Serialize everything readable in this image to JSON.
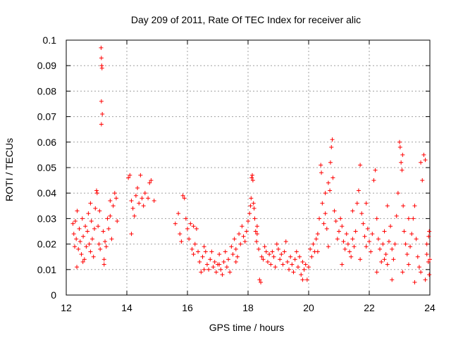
{
  "chart_data": {
    "type": "scatter",
    "title": "Day 209 of 2011, Rate Of TEC Index for receiver alic",
    "xlabel": "GPS time / hours",
    "ylabel": "ROTI / TECUs",
    "xlim": [
      12,
      24
    ],
    "ylim": [
      0,
      0.1
    ],
    "xticks": [
      12,
      14,
      16,
      18,
      20,
      22,
      24
    ],
    "xtick_labels": [
      "12",
      "14",
      "16",
      "18",
      "20",
      "22",
      "24"
    ],
    "yticks": [
      0,
      0.01,
      0.02,
      0.03,
      0.04,
      0.05,
      0.06,
      0.07,
      0.08,
      0.09,
      0.1
    ],
    "ytick_labels": [
      "0",
      "0.01",
      "0.02",
      "0.03",
      "0.04",
      "0.05",
      "0.06",
      "0.07",
      "0.08",
      "0.09",
      "0.1"
    ],
    "grid": true,
    "marker": "+",
    "series": [
      {
        "name": "ROTI",
        "color": "#ff0000",
        "points": [
          [
            12.22,
            0.028
          ],
          [
            12.25,
            0.024
          ],
          [
            12.28,
            0.019
          ],
          [
            12.3,
            0.029
          ],
          [
            12.33,
            0.022
          ],
          [
            12.36,
            0.033
          ],
          [
            12.4,
            0.018
          ],
          [
            12.43,
            0.026
          ],
          [
            12.46,
            0.021
          ],
          [
            12.5,
            0.016
          ],
          [
            12.53,
            0.03
          ],
          [
            12.56,
            0.023
          ],
          [
            12.6,
            0.014
          ],
          [
            12.63,
            0.027
          ],
          [
            12.66,
            0.019
          ],
          [
            12.7,
            0.025
          ],
          [
            12.73,
            0.032
          ],
          [
            12.76,
            0.02
          ],
          [
            12.8,
            0.017
          ],
          [
            12.83,
            0.029
          ],
          [
            12.86,
            0.022
          ],
          [
            12.9,
            0.015
          ],
          [
            12.93,
            0.026
          ],
          [
            12.96,
            0.034
          ],
          [
            13.0,
            0.041
          ],
          [
            13.02,
            0.04
          ],
          [
            13.05,
            0.027
          ],
          [
            13.08,
            0.02
          ],
          [
            13.1,
            0.033
          ],
          [
            13.12,
            0.018
          ],
          [
            13.15,
            0.097
          ],
          [
            13.16,
            0.093
          ],
          [
            13.17,
            0.09
          ],
          [
            13.18,
            0.089
          ],
          [
            13.16,
            0.076
          ],
          [
            13.19,
            0.071
          ],
          [
            13.16,
            0.067
          ],
          [
            13.22,
            0.025
          ],
          [
            13.25,
            0.014
          ],
          [
            13.28,
            0.021
          ],
          [
            13.32,
            0.019
          ],
          [
            13.36,
            0.03
          ],
          [
            13.4,
            0.026
          ],
          [
            13.45,
            0.031
          ],
          [
            13.5,
            0.022
          ],
          [
            13.55,
            0.035
          ],
          [
            13.6,
            0.04
          ],
          [
            13.65,
            0.038
          ],
          [
            13.68,
            0.029
          ],
          [
            14.1,
            0.047
          ],
          [
            14.15,
            0.037
          ],
          [
            14.2,
            0.034
          ],
          [
            14.25,
            0.031
          ],
          [
            14.3,
            0.039
          ],
          [
            14.35,
            0.042
          ],
          [
            14.4,
            0.036
          ],
          [
            14.45,
            0.047
          ],
          [
            14.5,
            0.038
          ],
          [
            14.55,
            0.035
          ],
          [
            14.6,
            0.04
          ],
          [
            14.7,
            0.038
          ],
          [
            14.75,
            0.044
          ],
          [
            14.8,
            0.045
          ],
          [
            14.9,
            0.037
          ],
          [
            14.15,
            0.024
          ],
          [
            15.7,
            0.032
          ],
          [
            15.75,
            0.024
          ],
          [
            15.8,
            0.021
          ],
          [
            15.85,
            0.039
          ],
          [
            15.9,
            0.038
          ],
          [
            15.95,
            0.03
          ],
          [
            16.0,
            0.026
          ],
          [
            16.05,
            0.022
          ],
          [
            16.1,
            0.028
          ],
          [
            16.15,
            0.018
          ],
          [
            16.2,
            0.016
          ],
          [
            16.25,
            0.02
          ],
          [
            16.3,
            0.026
          ],
          [
            16.35,
            0.017
          ],
          [
            16.4,
            0.013
          ],
          [
            16.45,
            0.009
          ],
          [
            16.5,
            0.015
          ],
          [
            16.55,
            0.019
          ],
          [
            16.6,
            0.017
          ],
          [
            16.65,
            0.012
          ],
          [
            16.7,
            0.01
          ],
          [
            16.75,
            0.014
          ],
          [
            16.8,
            0.017
          ],
          [
            16.85,
            0.011
          ],
          [
            16.9,
            0.013
          ],
          [
            16.95,
            0.009
          ],
          [
            17.0,
            0.012
          ],
          [
            17.05,
            0.016
          ],
          [
            17.1,
            0.01
          ],
          [
            17.15,
            0.008
          ],
          [
            17.2,
            0.013
          ],
          [
            17.25,
            0.017
          ],
          [
            17.3,
            0.011
          ],
          [
            17.35,
            0.014
          ],
          [
            17.4,
            0.009
          ],
          [
            17.45,
            0.019
          ],
          [
            17.5,
            0.016
          ],
          [
            17.55,
            0.022
          ],
          [
            17.6,
            0.018
          ],
          [
            17.65,
            0.015
          ],
          [
            17.7,
            0.024
          ],
          [
            17.75,
            0.02
          ],
          [
            17.8,
            0.027
          ],
          [
            17.85,
            0.023
          ],
          [
            17.9,
            0.021
          ],
          [
            17.95,
            0.025
          ],
          [
            18.0,
            0.029
          ],
          [
            18.05,
            0.032
          ],
          [
            18.08,
            0.035
          ],
          [
            18.1,
            0.038
          ],
          [
            18.12,
            0.046
          ],
          [
            18.14,
            0.047
          ],
          [
            18.16,
            0.045
          ],
          [
            18.18,
            0.036
          ],
          [
            18.2,
            0.034
          ],
          [
            18.22,
            0.03
          ],
          [
            18.25,
            0.025
          ],
          [
            18.28,
            0.021
          ],
          [
            18.3,
            0.024
          ],
          [
            18.35,
            0.018
          ],
          [
            18.38,
            0.006
          ],
          [
            18.42,
            0.005
          ],
          [
            18.45,
            0.015
          ],
          [
            18.5,
            0.014
          ],
          [
            18.55,
            0.019
          ],
          [
            18.6,
            0.017
          ],
          [
            18.65,
            0.013
          ],
          [
            18.7,
            0.016
          ],
          [
            18.75,
            0.012
          ],
          [
            18.8,
            0.017
          ],
          [
            18.85,
            0.015
          ],
          [
            18.9,
            0.011
          ],
          [
            18.95,
            0.02
          ],
          [
            19.0,
            0.018
          ],
          [
            19.05,
            0.014
          ],
          [
            19.1,
            0.016
          ],
          [
            19.15,
            0.012
          ],
          [
            19.2,
            0.017
          ],
          [
            19.25,
            0.021
          ],
          [
            19.3,
            0.013
          ],
          [
            19.35,
            0.01
          ],
          [
            19.4,
            0.015
          ],
          [
            19.45,
            0.012
          ],
          [
            19.5,
            0.009
          ],
          [
            19.55,
            0.014
          ],
          [
            19.6,
            0.017
          ],
          [
            19.65,
            0.011
          ],
          [
            19.7,
            0.015
          ],
          [
            19.75,
            0.008
          ],
          [
            19.8,
            0.013
          ],
          [
            19.85,
            0.01
          ],
          [
            19.9,
            0.012
          ],
          [
            19.95,
            0.006
          ],
          [
            20.0,
            0.011
          ],
          [
            20.05,
            0.018
          ],
          [
            20.1,
            0.015
          ],
          [
            20.15,
            0.02
          ],
          [
            20.2,
            0.017
          ],
          [
            20.25,
            0.022
          ],
          [
            20.3,
            0.024
          ],
          [
            20.35,
            0.03
          ],
          [
            20.4,
            0.051
          ],
          [
            20.42,
            0.048
          ],
          [
            20.45,
            0.036
          ],
          [
            20.5,
            0.028
          ],
          [
            20.55,
            0.032
          ],
          [
            20.6,
            0.026
          ],
          [
            20.65,
            0.019
          ],
          [
            20.7,
            0.041
          ],
          [
            20.72,
            0.052
          ],
          [
            20.75,
            0.058
          ],
          [
            20.78,
            0.061
          ],
          [
            20.8,
            0.046
          ],
          [
            20.85,
            0.033
          ],
          [
            20.9,
            0.029
          ],
          [
            20.95,
            0.022
          ],
          [
            21.0,
            0.025
          ],
          [
            21.05,
            0.03
          ],
          [
            21.1,
            0.027
          ],
          [
            21.15,
            0.021
          ],
          [
            21.2,
            0.018
          ],
          [
            21.25,
            0.024
          ],
          [
            21.3,
            0.02
          ],
          [
            21.35,
            0.017
          ],
          [
            21.4,
            0.015
          ],
          [
            21.45,
            0.022
          ],
          [
            21.5,
            0.019
          ],
          [
            21.55,
            0.025
          ],
          [
            21.6,
            0.036
          ],
          [
            21.65,
            0.041
          ],
          [
            21.7,
            0.051
          ],
          [
            21.75,
            0.032
          ],
          [
            21.8,
            0.028
          ],
          [
            21.85,
            0.023
          ],
          [
            21.9,
            0.019
          ],
          [
            21.95,
            0.026
          ],
          [
            22.0,
            0.021
          ],
          [
            22.05,
            0.017
          ],
          [
            22.1,
            0.024
          ],
          [
            22.15,
            0.045
          ],
          [
            22.2,
            0.049
          ],
          [
            22.25,
            0.03
          ],
          [
            22.3,
            0.022
          ],
          [
            22.35,
            0.018
          ],
          [
            22.4,
            0.013
          ],
          [
            22.45,
            0.02
          ],
          [
            22.5,
            0.025
          ],
          [
            22.55,
            0.016
          ],
          [
            22.6,
            0.012
          ],
          [
            22.65,
            0.021
          ],
          [
            22.7,
            0.027
          ],
          [
            22.75,
            0.018
          ],
          [
            22.8,
            0.014
          ],
          [
            22.85,
            0.02
          ],
          [
            22.9,
            0.031
          ],
          [
            22.95,
            0.04
          ],
          [
            23.0,
            0.06
          ],
          [
            23.02,
            0.058
          ],
          [
            23.05,
            0.052
          ],
          [
            23.08,
            0.049
          ],
          [
            23.1,
            0.055
          ],
          [
            23.12,
            0.035
          ],
          [
            23.15,
            0.025
          ],
          [
            23.2,
            0.02
          ],
          [
            23.25,
            0.016
          ],
          [
            23.3,
            0.012
          ],
          [
            23.35,
            0.019
          ],
          [
            23.4,
            0.024
          ],
          [
            23.45,
            0.03
          ],
          [
            23.5,
            0.035
          ],
          [
            23.55,
            0.022
          ],
          [
            23.6,
            0.015
          ],
          [
            23.65,
            0.011
          ],
          [
            23.7,
            0.052
          ],
          [
            23.75,
            0.045
          ],
          [
            23.8,
            0.055
          ],
          [
            23.85,
            0.053
          ],
          [
            23.9,
            0.02
          ],
          [
            23.95,
            0.013
          ],
          [
            23.98,
            0.008
          ],
          [
            23.85,
            0.006
          ],
          [
            23.9,
            0.016
          ],
          [
            23.96,
            0.023
          ],
          [
            12.35,
            0.011
          ],
          [
            12.55,
            0.013
          ],
          [
            13.25,
            0.012
          ],
          [
            12.8,
            0.036
          ],
          [
            13.45,
            0.037
          ],
          [
            14.05,
            0.046
          ],
          [
            15.6,
            0.028
          ],
          [
            16.2,
            0.027
          ],
          [
            16.55,
            0.01
          ],
          [
            17.05,
            0.012
          ],
          [
            17.6,
            0.013
          ],
          [
            18.3,
            0.027
          ],
          [
            19.8,
            0.006
          ],
          [
            20.55,
            0.04
          ],
          [
            20.65,
            0.044
          ],
          [
            21.45,
            0.033
          ],
          [
            21.9,
            0.036
          ],
          [
            22.6,
            0.035
          ],
          [
            22.75,
            0.006
          ],
          [
            23.1,
            0.009
          ],
          [
            23.5,
            0.005
          ],
          [
            23.7,
            0.009
          ],
          [
            24.0,
            0.014
          ],
          [
            23.98,
            0.025
          ],
          [
            20.3,
            0.017
          ],
          [
            21.1,
            0.012
          ],
          [
            22.25,
            0.009
          ],
          [
            23.3,
            0.03
          ],
          [
            22.5,
            0.014
          ],
          [
            21.7,
            0.014
          ]
        ]
      }
    ]
  }
}
